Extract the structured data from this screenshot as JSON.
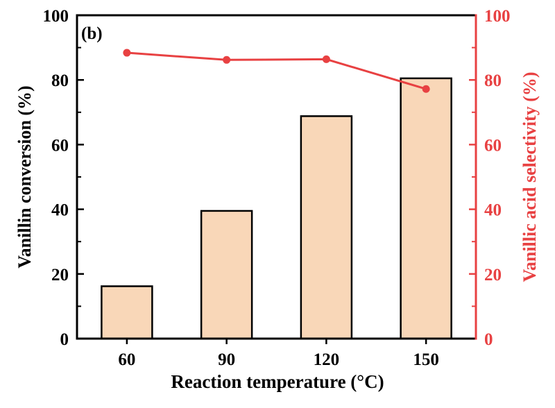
{
  "chart_data": {
    "type": "bar",
    "panel_label": "(b)",
    "xlabel": "Reaction temperature (°C)",
    "categories": [
      "60",
      "90",
      "120",
      "150"
    ],
    "ylabel_left": "Vanillin conversion (%)",
    "ylabel_right": "Vanillic acid selectivity (%)",
    "ylim_left": [
      0,
      100
    ],
    "ylim_right": [
      0,
      100
    ],
    "yticks_left": [
      "0",
      "20",
      "40",
      "60",
      "80",
      "100"
    ],
    "yticks_right": [
      "0",
      "20",
      "40",
      "60",
      "80",
      "100"
    ],
    "series": [
      {
        "type": "bar",
        "axis": "left",
        "values": [
          16.2,
          39.5,
          68.8,
          80.5
        ],
        "color": "#f9d7b8"
      },
      {
        "type": "line",
        "axis": "right",
        "values": [
          88.4,
          86.2,
          86.4,
          77.2
        ],
        "color": "#e84142"
      }
    ],
    "grid": false
  }
}
